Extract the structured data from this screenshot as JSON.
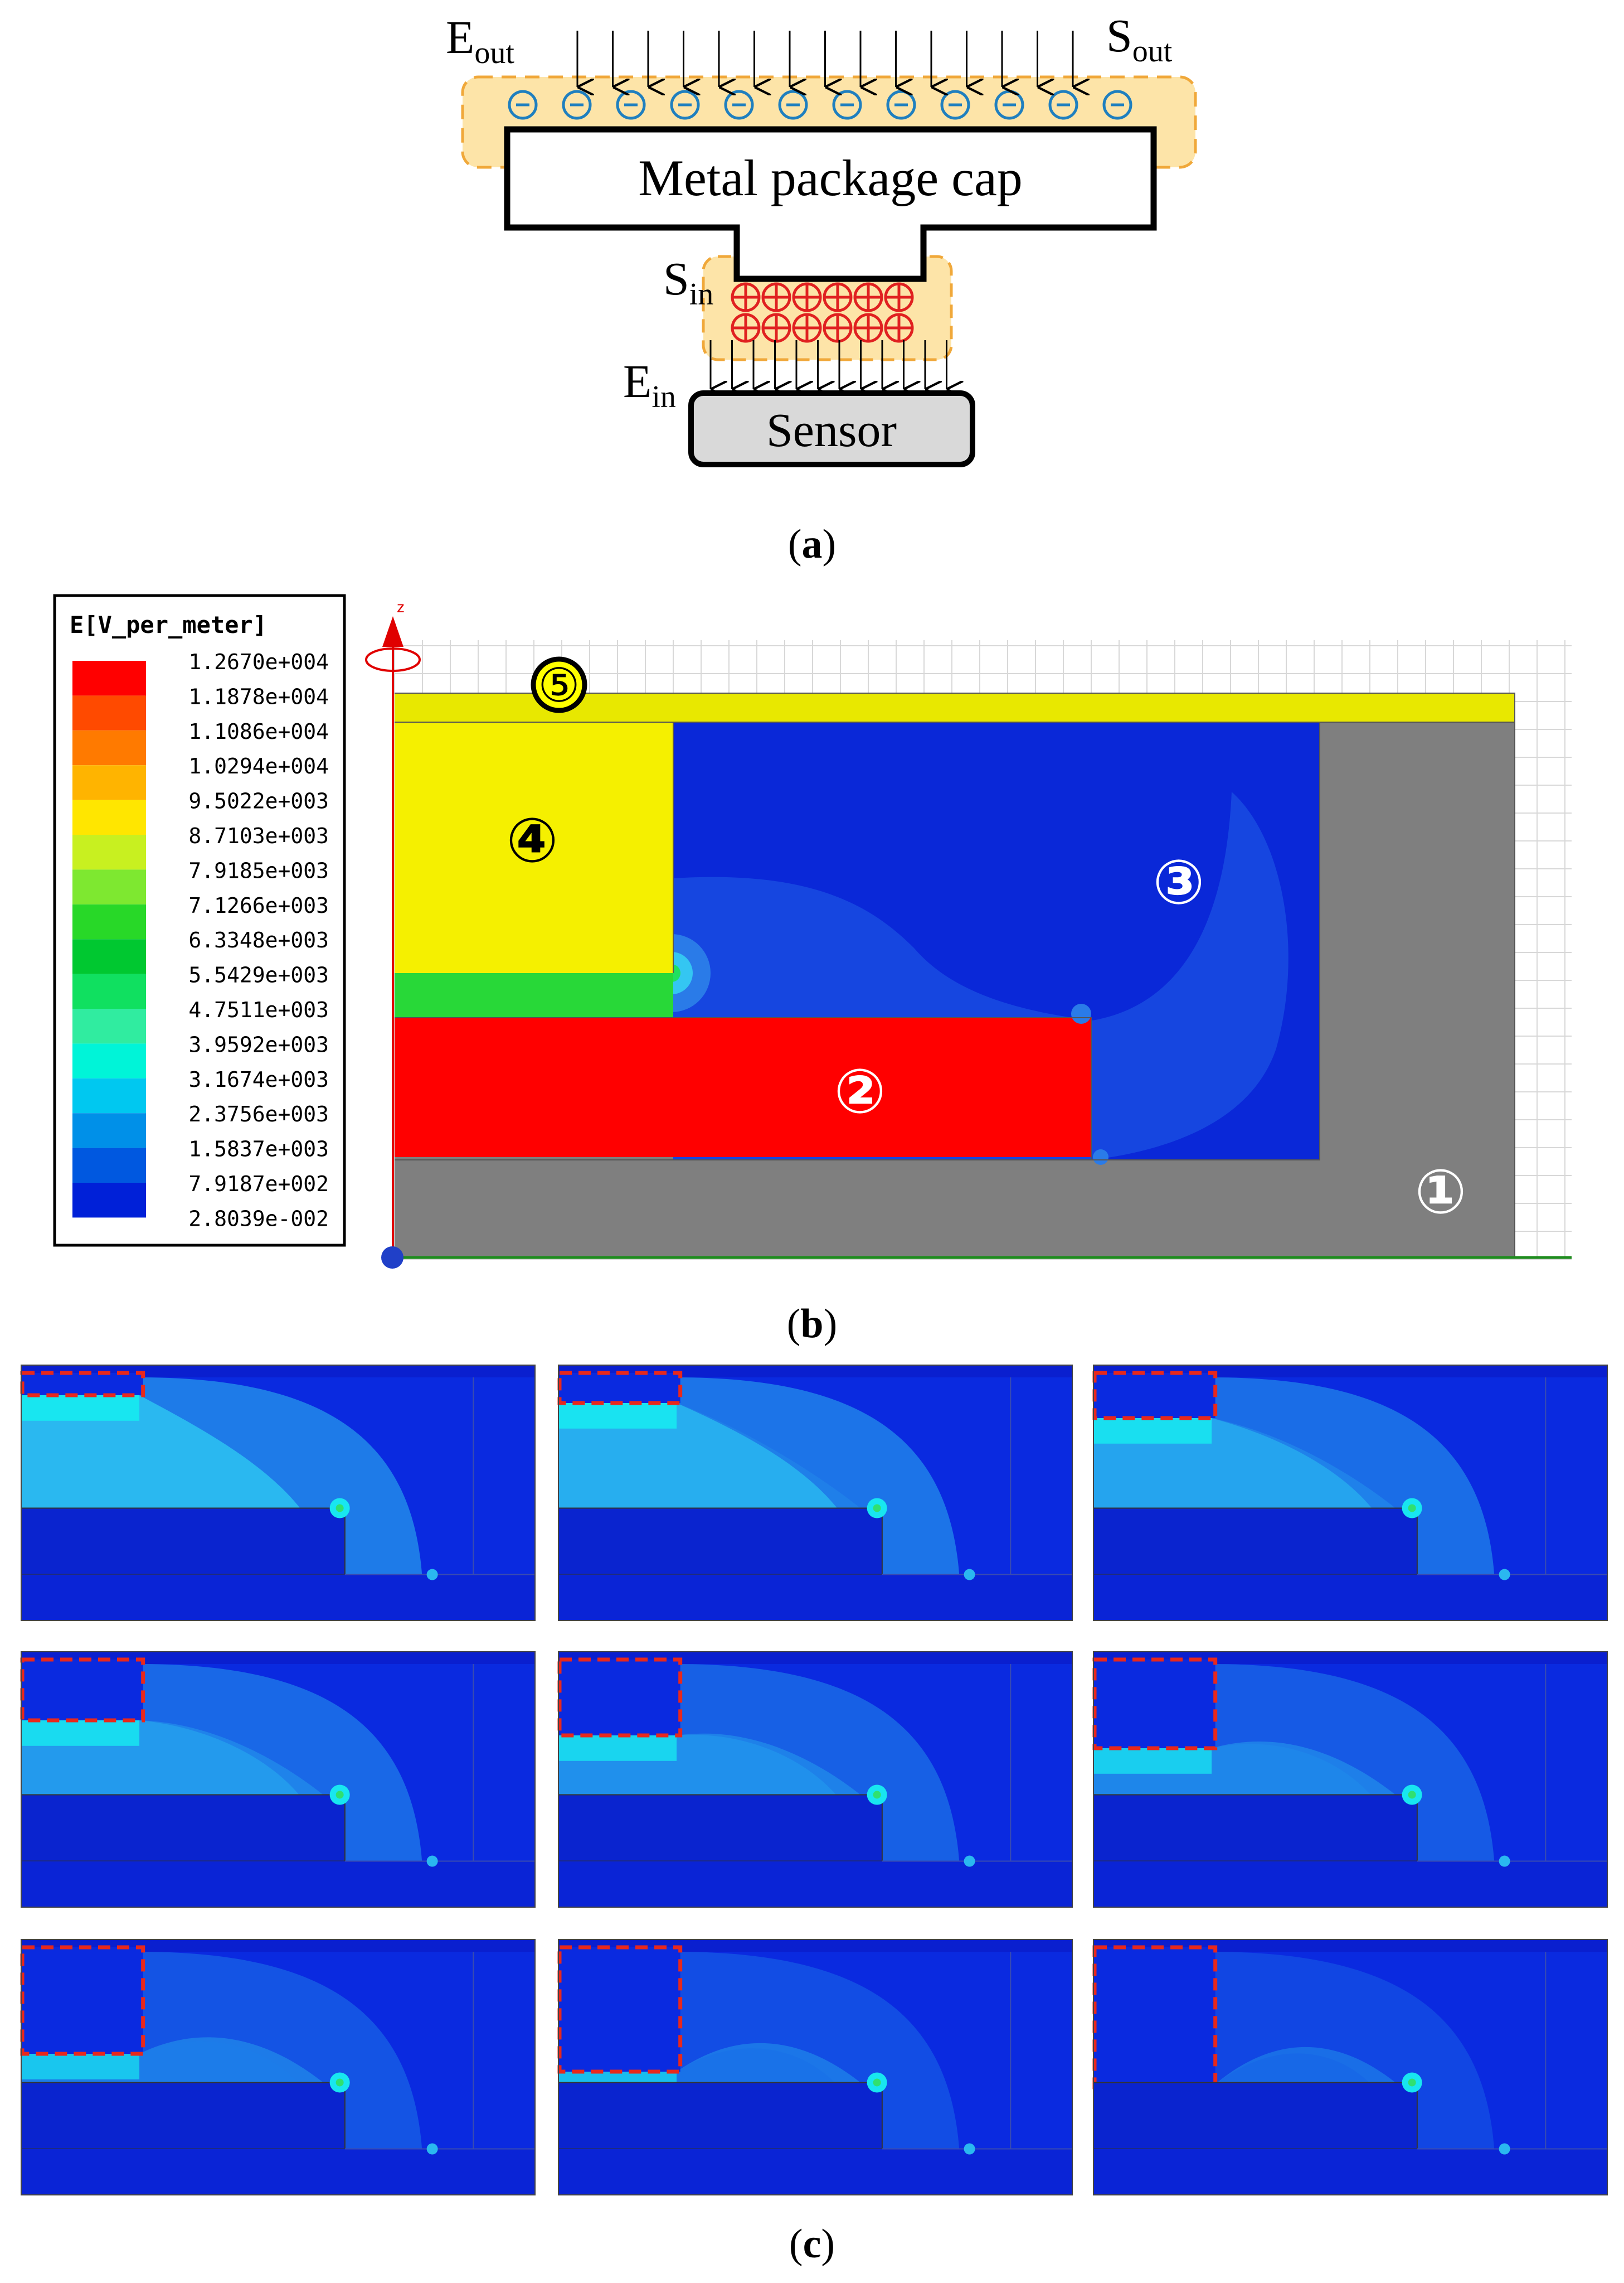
{
  "panel_a": {
    "label": "(a)",
    "label_letter": "a",
    "e_out_base": "E",
    "e_out_sub": "out",
    "s_out_base": "S",
    "s_out_sub": "out",
    "s_in_base": "S",
    "s_in_sub": "in",
    "e_in_base": "E",
    "e_in_sub": "in",
    "cap_label": "Metal package cap",
    "sensor_label": "Sensor",
    "negative_charge_count": 12,
    "positive_charge_rows": 2,
    "positive_charge_cols": 6,
    "outer_arrow_count": 15,
    "inner_arrow_count": 12,
    "colors": {
      "glow_fill": "#fde4a8",
      "glow_border": "#f0a83a",
      "negative": "#1f7fbf",
      "positive": "#e02020",
      "sensor_fill": "#d9d9d9"
    }
  },
  "panel_b": {
    "label": "(b)",
    "label_letter": "b",
    "legend_title": "E[V_per_meter]",
    "legend_values": [
      "1.2670e+004",
      "1.1878e+004",
      "1.1086e+004",
      "1.0294e+004",
      "9.5022e+003",
      "8.7103e+003",
      "7.9185e+003",
      "7.1266e+003",
      "6.3348e+003",
      "5.5429e+003",
      "4.7511e+003",
      "3.9592e+003",
      "3.1674e+003",
      "2.3756e+003",
      "1.5837e+003",
      "7.9187e+002",
      "2.8039e-002"
    ],
    "legend_colors": [
      "#ff0000",
      "#ff4a00",
      "#ff7a00",
      "#ffb400",
      "#ffe600",
      "#c8f020",
      "#7ee830",
      "#28d828",
      "#00c830",
      "#10e060",
      "#30eca0",
      "#00f4d8",
      "#00c8f0",
      "#0090e8",
      "#0058e0",
      "#0020d8"
    ],
    "axis_label": "z",
    "regions": [
      {
        "mark": "①",
        "color": "#7f7f7f"
      },
      {
        "mark": "②",
        "color": "#ff0000"
      },
      {
        "mark": "③",
        "color": "#0a28d8"
      },
      {
        "mark": "④",
        "color": "#f5f000"
      },
      {
        "mark": "⑤",
        "color": "#e8e800"
      }
    ]
  },
  "panel_c": {
    "label": "(c)",
    "label_letter": "c",
    "cap_heights": [
      0.07,
      0.1,
      0.16,
      0.22,
      0.28,
      0.33,
      0.4,
      0.47,
      0.53
    ],
    "colors": {
      "dark_blue": "#0a2ae0",
      "mid_blue": "#1e7be8",
      "light_blue": "#2ab8f0",
      "cyan": "#18e6f0",
      "edge_red": "#e8281c"
    }
  }
}
